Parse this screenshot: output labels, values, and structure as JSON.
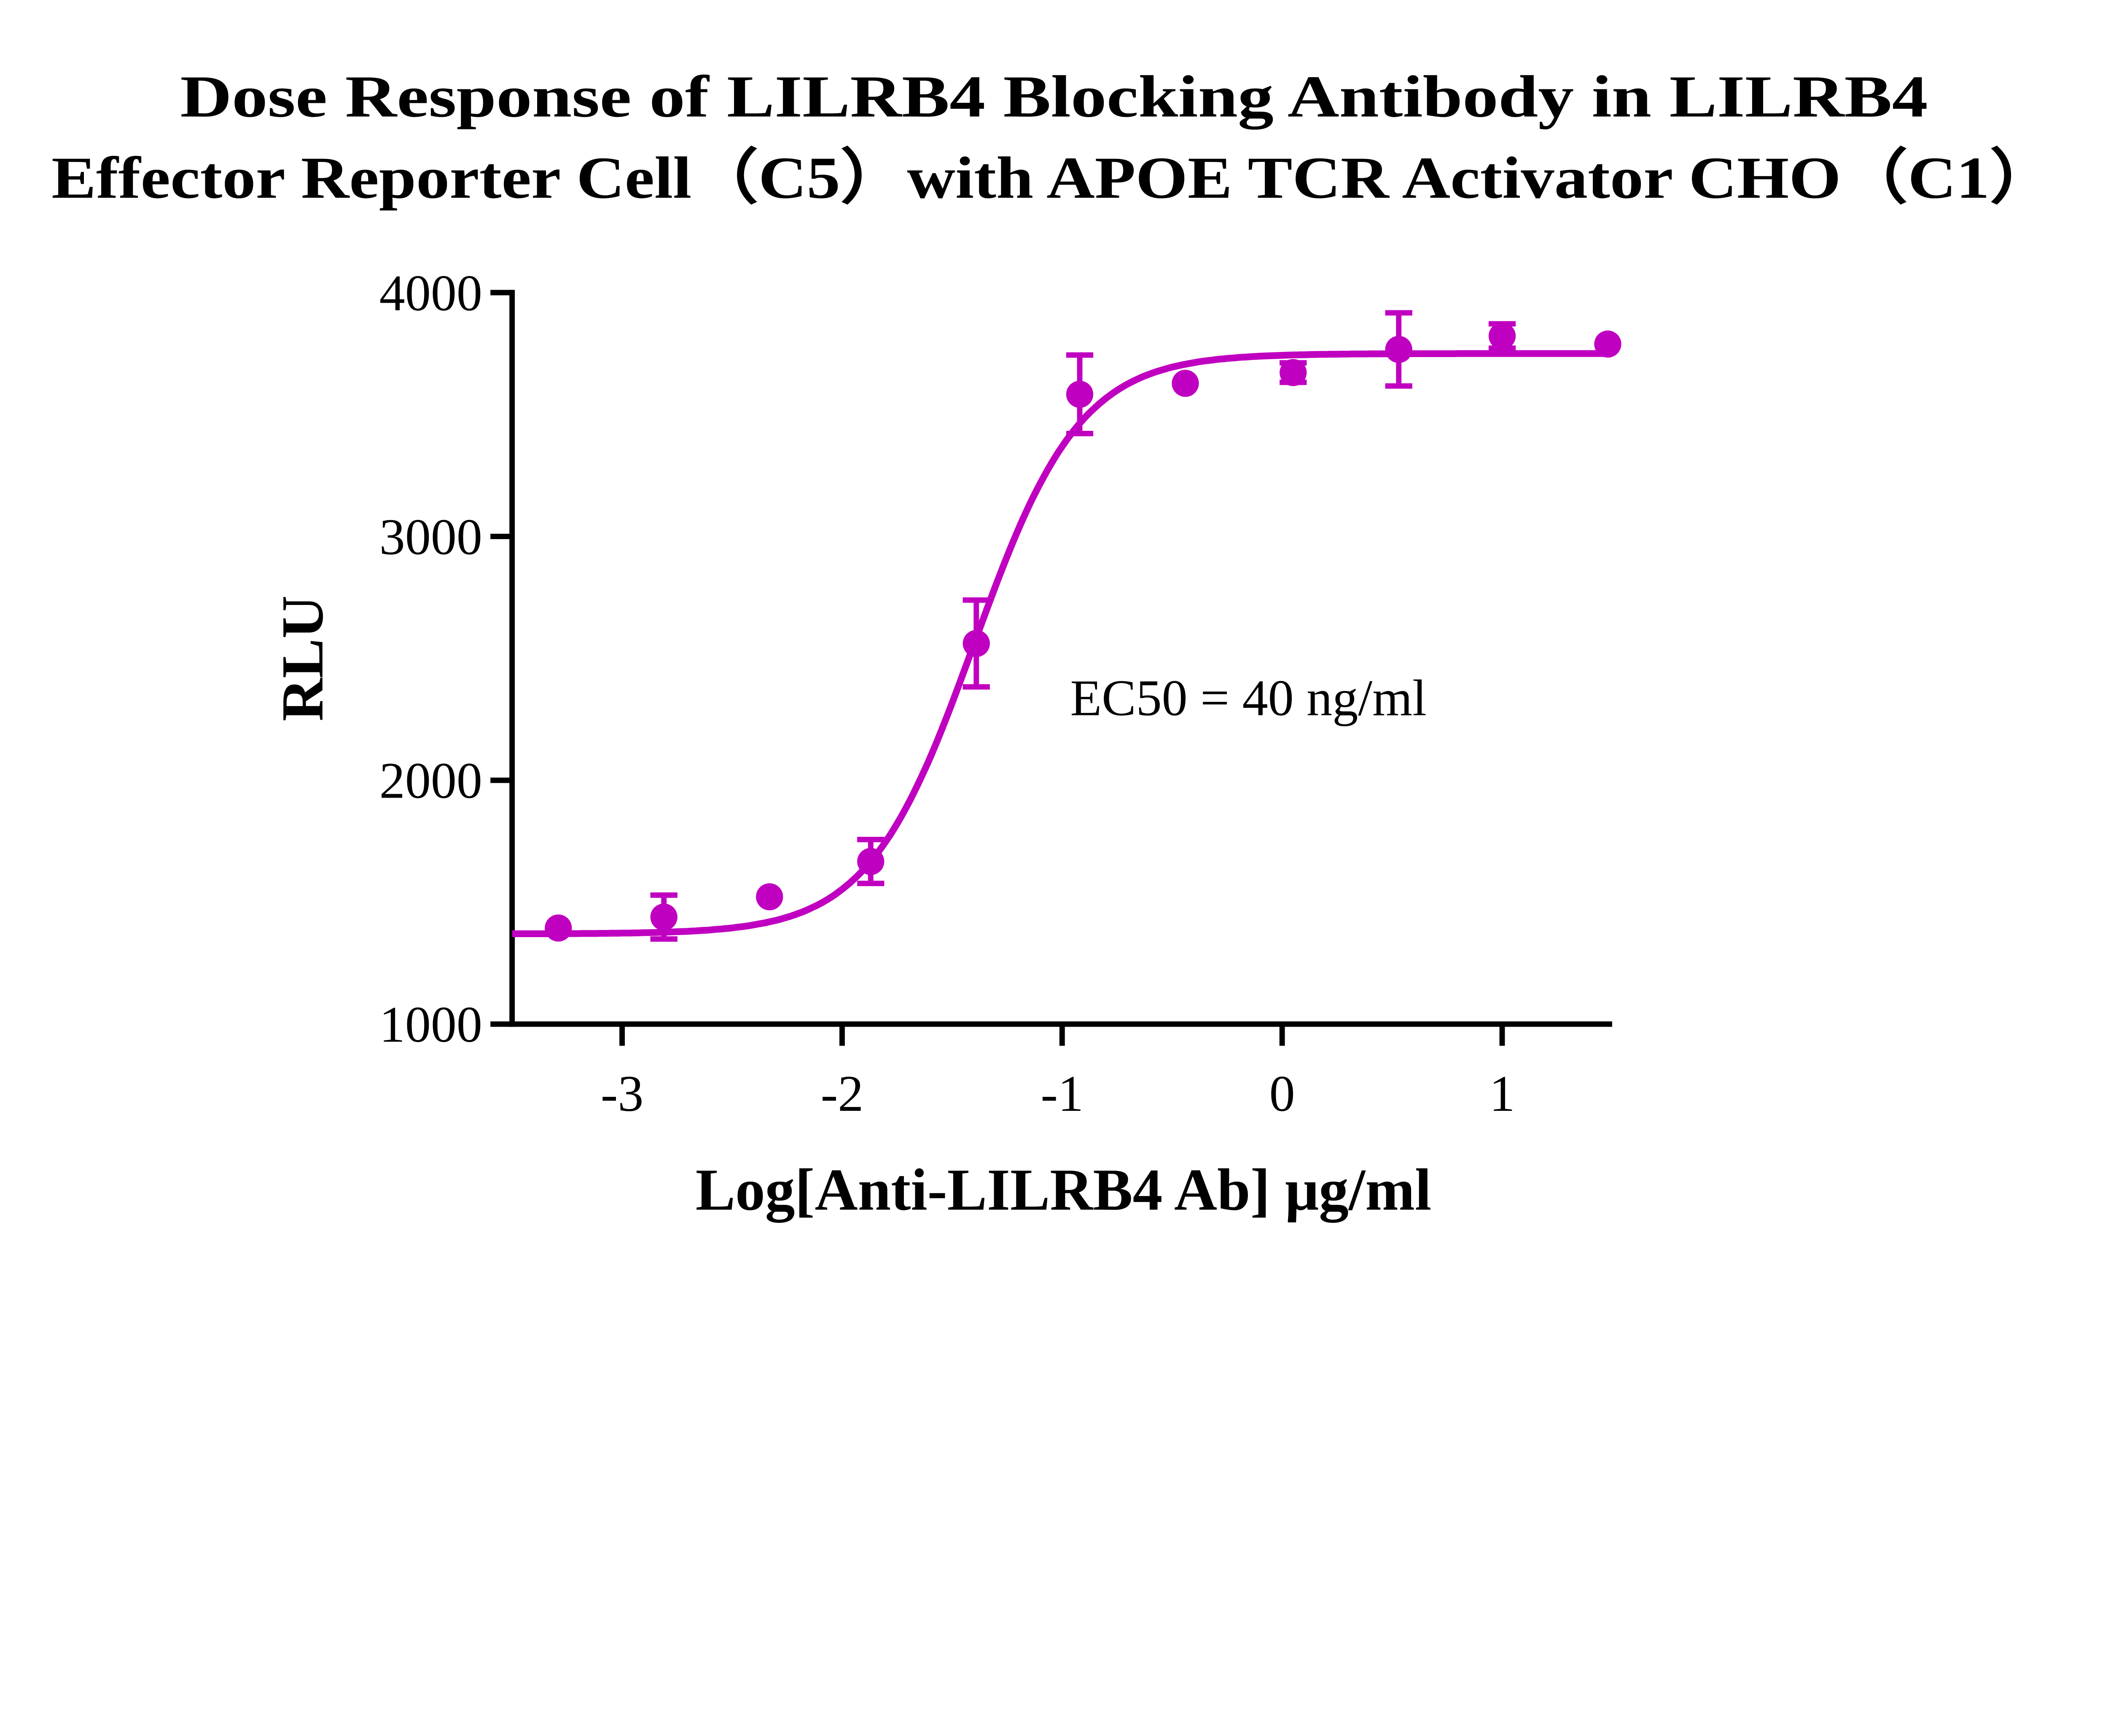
{
  "chart_data": {
    "type": "scatter",
    "title_lines": [
      "Dose Response of LILRB4 Blocking Antibody in LILRB4",
      "Effector Reporter Cell（C5）with APOE TCR Activator CHO（C1）"
    ],
    "xlabel": "Log[Anti-LILRB4 Ab] μg/ml",
    "ylabel": "RLU",
    "xlim": [
      -3.5,
      1.5
    ],
    "ylim": [
      1000,
      4000
    ],
    "xticks": [
      -3,
      -2,
      -1,
      0,
      1
    ],
    "xtick_labels": [
      "-3",
      "-2",
      "-1",
      "0",
      "1"
    ],
    "yticks": [
      1000,
      2000,
      3000,
      4000
    ],
    "ytick_labels": [
      "1000",
      "2000",
      "3000",
      "4000"
    ],
    "grid": false,
    "color": "#C000C0",
    "annotation": "EC50 = 40 ng/ml",
    "points": [
      {
        "x": -3.29,
        "y": 1394,
        "err": 0
      },
      {
        "x": -2.81,
        "y": 1439,
        "err": 90
      },
      {
        "x": -2.33,
        "y": 1522,
        "err": 0
      },
      {
        "x": -1.87,
        "y": 1667,
        "err": 90
      },
      {
        "x": -1.39,
        "y": 2561,
        "err": 178
      },
      {
        "x": -0.92,
        "y": 3583,
        "err": 161
      },
      {
        "x": -0.44,
        "y": 3628,
        "err": 0
      },
      {
        "x": 0.05,
        "y": 3672,
        "err": 40
      },
      {
        "x": 0.53,
        "y": 3767,
        "err": 150
      },
      {
        "x": 1.0,
        "y": 3822,
        "err": 50
      },
      {
        "x": 1.48,
        "y": 3789,
        "err": 0
      }
    ],
    "fit": {
      "model": "4PL",
      "bottom": 1370,
      "top": 3750,
      "logEC50": -1.4,
      "hill": 1.8
    }
  }
}
